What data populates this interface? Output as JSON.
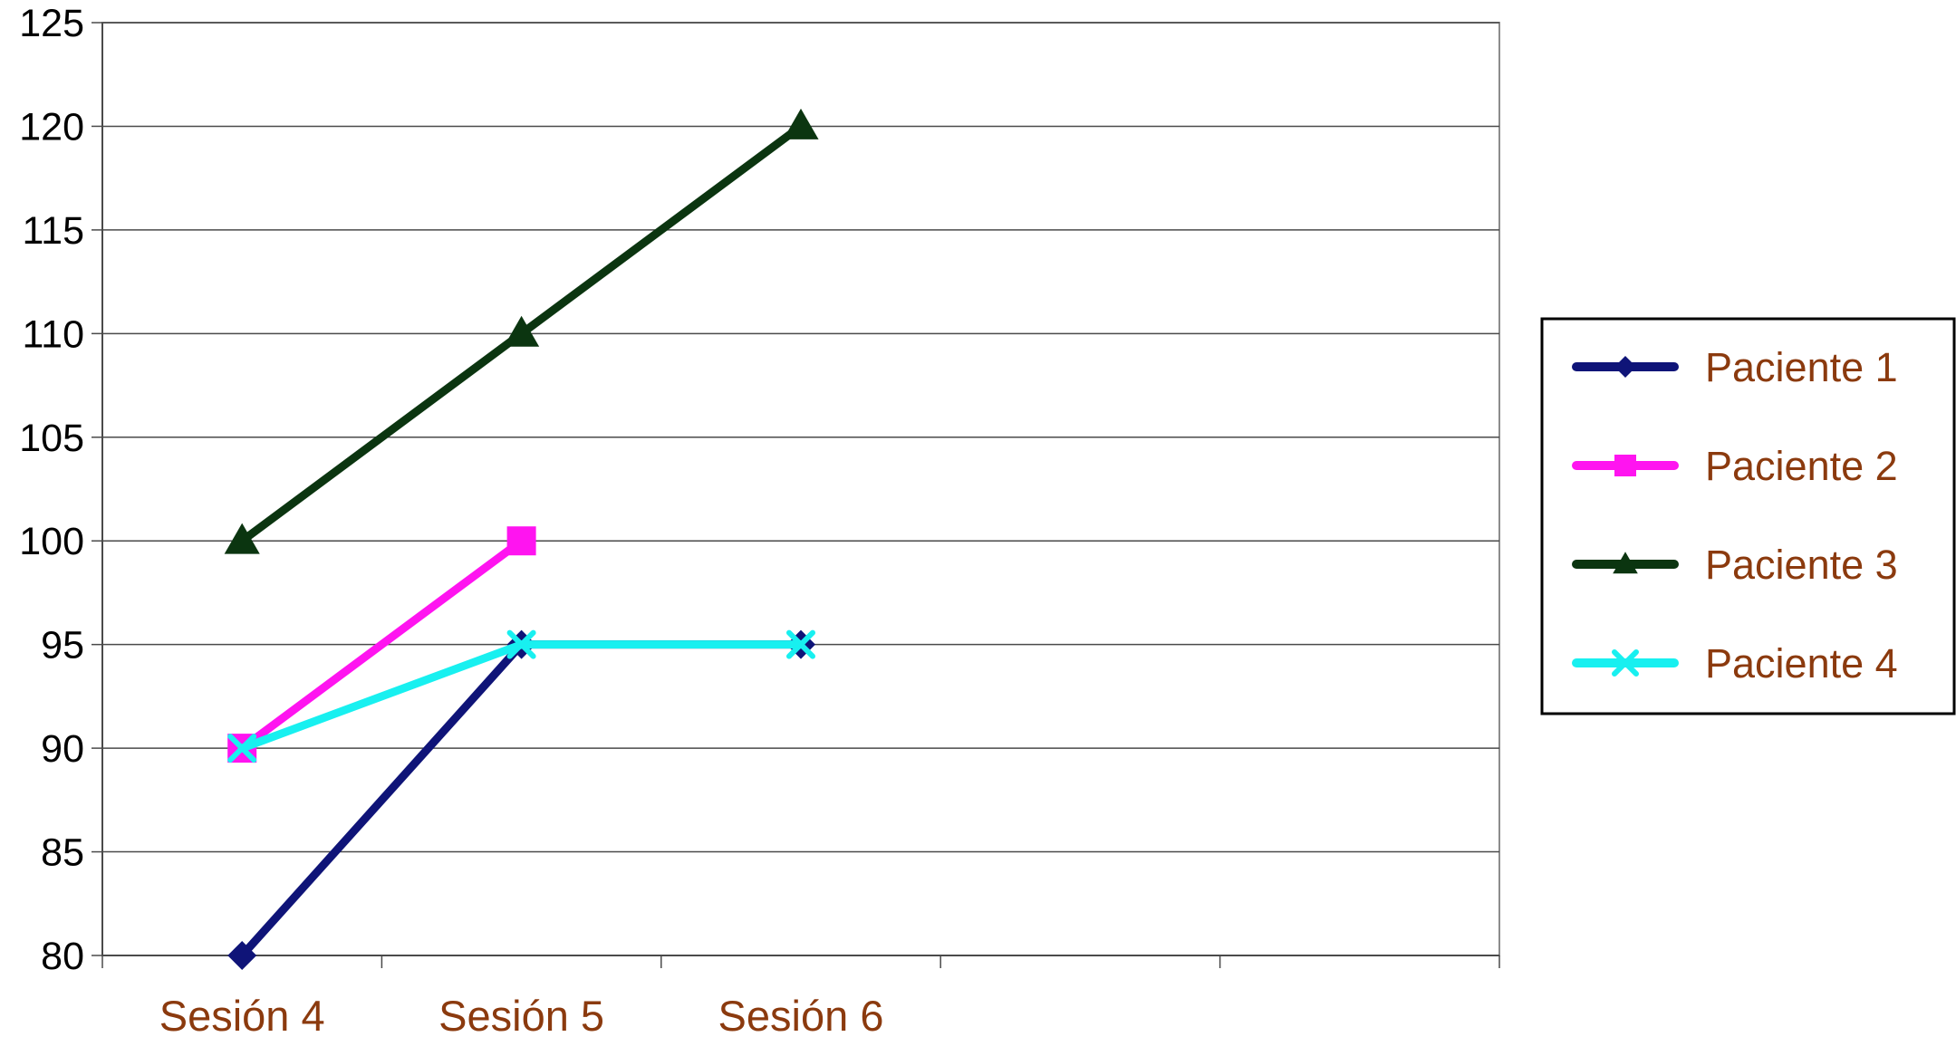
{
  "chart_data": {
    "type": "line",
    "title": "",
    "xlabel": "",
    "ylabel": "",
    "categories": [
      "Sesión 4",
      "Sesión 5",
      "Sesión 6",
      "",
      ""
    ],
    "ylim": [
      80,
      125
    ],
    "yticks": [
      80,
      85,
      90,
      95,
      100,
      105,
      110,
      115,
      120,
      125
    ],
    "grid": true,
    "legend_position": "right",
    "category_label_color": "#8B3A0E",
    "series": [
      {
        "name": "Paciente 1",
        "color": "#0F1478",
        "marker": "diamond",
        "values": [
          80,
          95,
          95,
          null,
          null
        ]
      },
      {
        "name": "Paciente 2",
        "color": "#FF14F0",
        "marker": "square",
        "values": [
          90,
          100,
          null,
          null,
          null
        ]
      },
      {
        "name": "Paciente 3",
        "color": "#0B3510",
        "marker": "triangle",
        "values": [
          100,
          110,
          120,
          null,
          null
        ]
      },
      {
        "name": "Paciente 4",
        "color": "#18F0F0",
        "marker": "x",
        "values": [
          90,
          95,
          95,
          null,
          null
        ]
      }
    ]
  }
}
